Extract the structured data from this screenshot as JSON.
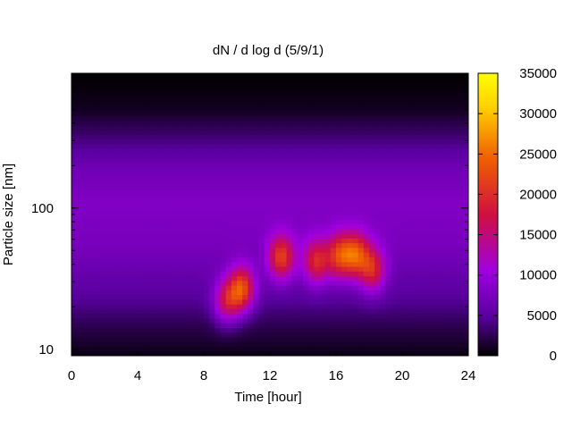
{
  "chart_data": {
    "type": "heatmap",
    "title": "dN / d log d (5/9/1)",
    "xlabel": "Time [hour]",
    "ylabel": "Particle size [nm]",
    "xlim": [
      0,
      24
    ],
    "x_ticks": [
      0,
      4,
      8,
      12,
      16,
      20,
      24
    ],
    "y_scale": "log",
    "ylim": [
      9,
      900
    ],
    "y_ticks": [
      10,
      100
    ],
    "colorbar": {
      "min": 0,
      "max": 35000,
      "ticks": [
        0,
        5000,
        10000,
        15000,
        20000,
        25000,
        30000,
        35000
      ],
      "colors": [
        "#000000",
        "#5a00a0",
        "#a000e0",
        "#d01040",
        "#f06000",
        "#ffd000",
        "#ffff00"
      ]
    },
    "background_level": [
      {
        "size": 9,
        "value": 500
      },
      {
        "size": 15,
        "value": 2500
      },
      {
        "size": 22,
        "value": 4500
      },
      {
        "size": 35,
        "value": 6000
      },
      {
        "size": 60,
        "value": 7500
      },
      {
        "size": 110,
        "value": 8000
      },
      {
        "size": 200,
        "value": 6500
      },
      {
        "size": 350,
        "value": 3000
      },
      {
        "size": 500,
        "value": 1000
      },
      {
        "size": 900,
        "value": 0
      }
    ],
    "hotspots": [
      {
        "time": 9.4,
        "size": 22,
        "value": 19000
      },
      {
        "time": 10.3,
        "size": 27,
        "value": 24000
      },
      {
        "time": 12.7,
        "size": 45,
        "value": 22000
      },
      {
        "time": 14.8,
        "size": 42,
        "value": 20000
      },
      {
        "time": 16.2,
        "size": 46,
        "value": 21000
      },
      {
        "time": 17.2,
        "size": 47,
        "value": 22000
      },
      {
        "time": 18.2,
        "size": 37,
        "value": 20000
      }
    ]
  }
}
